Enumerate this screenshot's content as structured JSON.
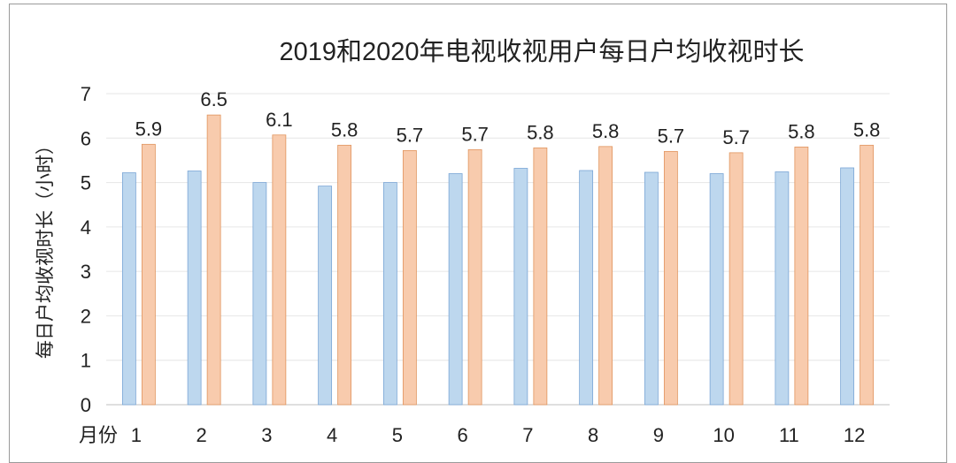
{
  "chart_data": {
    "type": "bar",
    "title": "2019和2020年电视收视用户每日户均收视时长",
    "xlabel": "月份",
    "ylabel": "每日户均收视时长（小时）",
    "ylim": [
      0,
      7
    ],
    "yticks": [
      "0",
      "1",
      "2",
      "3",
      "4",
      "5",
      "6",
      "7"
    ],
    "categories": [
      "1",
      "2",
      "3",
      "4",
      "5",
      "6",
      "7",
      "8",
      "9",
      "10",
      "11",
      "12"
    ],
    "series": [
      {
        "color": "#bdd7ee",
        "stroke": "#7aa6d6",
        "values": [
          5.22,
          5.26,
          5.0,
          4.92,
          5.0,
          5.2,
          5.32,
          5.27,
          5.23,
          5.2,
          5.24,
          5.33
        ],
        "labels": []
      },
      {
        "color": "#f8cbad",
        "stroke": "#e0945e",
        "values": [
          5.86,
          6.52,
          6.07,
          5.84,
          5.72,
          5.74,
          5.78,
          5.81,
          5.7,
          5.67,
          5.8,
          5.84
        ],
        "labels": [
          "5.9",
          "6.5",
          "6.1",
          "5.8",
          "5.7",
          "5.7",
          "5.8",
          "5.8",
          "5.7",
          "5.7",
          "5.8",
          "5.8"
        ]
      }
    ],
    "grid": true,
    "legend": "none"
  }
}
